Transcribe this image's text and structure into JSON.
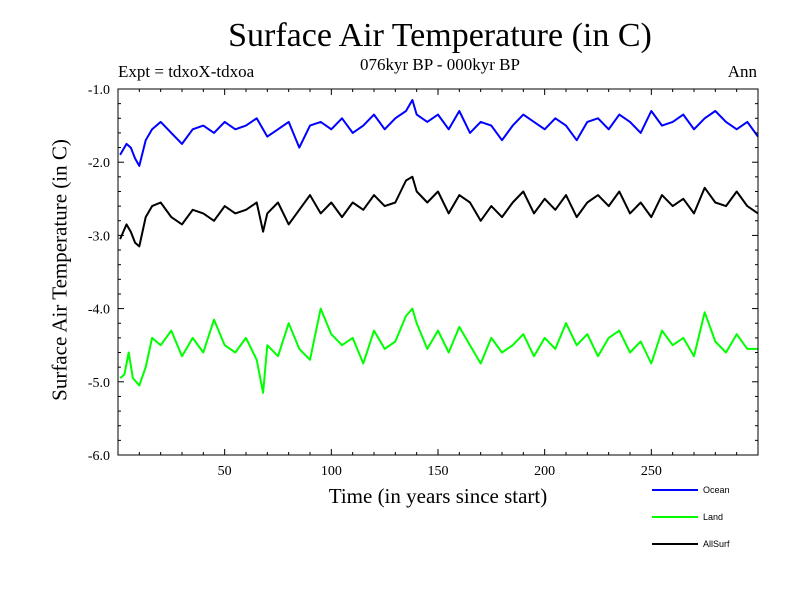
{
  "chart_data": {
    "type": "line",
    "title": "Surface Air Temperature (in C)",
    "subtitle": "076kyr BP - 000kyr BP",
    "expt_label": "Expt = tdxoX-tdxoa",
    "season_label": "Ann",
    "xlabel": "Time (in years since start)",
    "ylabel": "Surface Air Temperature (in C)",
    "xlim": [
      0,
      300
    ],
    "ylim": [
      -6.0,
      -1.0
    ],
    "x_ticks": [
      50,
      100,
      150,
      200,
      250
    ],
    "y_ticks": [
      -1.0,
      -2.0,
      -3.0,
      -4.0,
      -5.0,
      -6.0
    ],
    "grid": false,
    "legend_position": "bottom-right, below axes",
    "series": [
      {
        "name": "Ocean",
        "color": "#0000ff",
        "x": [
          1,
          4,
          6,
          8,
          10,
          13,
          16,
          20,
          25,
          30,
          35,
          40,
          45,
          50,
          55,
          60,
          65,
          70,
          75,
          80,
          85,
          90,
          95,
          100,
          105,
          110,
          115,
          120,
          125,
          130,
          135,
          138,
          140,
          145,
          150,
          155,
          160,
          165,
          170,
          175,
          180,
          185,
          190,
          195,
          200,
          205,
          210,
          215,
          220,
          225,
          230,
          235,
          240,
          245,
          250,
          255,
          260,
          265,
          270,
          275,
          280,
          285,
          290,
          295,
          300
        ],
        "values": [
          -1.9,
          -1.75,
          -1.8,
          -1.95,
          -2.05,
          -1.7,
          -1.55,
          -1.45,
          -1.6,
          -1.75,
          -1.55,
          -1.5,
          -1.6,
          -1.45,
          -1.55,
          -1.5,
          -1.4,
          -1.65,
          -1.55,
          -1.45,
          -1.8,
          -1.5,
          -1.45,
          -1.55,
          -1.4,
          -1.6,
          -1.5,
          -1.35,
          -1.55,
          -1.4,
          -1.3,
          -1.15,
          -1.35,
          -1.45,
          -1.35,
          -1.55,
          -1.3,
          -1.6,
          -1.45,
          -1.5,
          -1.7,
          -1.5,
          -1.35,
          -1.45,
          -1.55,
          -1.4,
          -1.5,
          -1.7,
          -1.45,
          -1.4,
          -1.55,
          -1.35,
          -1.45,
          -1.6,
          -1.3,
          -1.5,
          -1.45,
          -1.35,
          -1.55,
          -1.4,
          -1.3,
          -1.45,
          -1.55,
          -1.45,
          -1.65
        ]
      },
      {
        "name": "Land",
        "color": "#00ff00",
        "x": [
          1,
          3,
          5,
          7,
          10,
          13,
          16,
          20,
          25,
          30,
          35,
          40,
          45,
          50,
          55,
          60,
          65,
          68,
          70,
          75,
          80,
          85,
          90,
          95,
          100,
          105,
          110,
          115,
          120,
          125,
          130,
          135,
          138,
          140,
          145,
          150,
          155,
          160,
          165,
          170,
          175,
          180,
          185,
          190,
          195,
          200,
          205,
          210,
          215,
          220,
          225,
          230,
          235,
          240,
          245,
          250,
          255,
          260,
          265,
          270,
          275,
          280,
          285,
          290,
          295,
          300
        ],
        "values": [
          -4.95,
          -4.9,
          -4.6,
          -4.95,
          -5.05,
          -4.8,
          -4.4,
          -4.5,
          -4.3,
          -4.65,
          -4.4,
          -4.6,
          -4.15,
          -4.5,
          -4.6,
          -4.4,
          -4.7,
          -5.15,
          -4.5,
          -4.65,
          -4.2,
          -4.55,
          -4.7,
          -4.0,
          -4.35,
          -4.5,
          -4.4,
          -4.75,
          -4.3,
          -4.55,
          -4.45,
          -4.1,
          -4.0,
          -4.2,
          -4.55,
          -4.3,
          -4.6,
          -4.25,
          -4.5,
          -4.75,
          -4.4,
          -4.6,
          -4.5,
          -4.35,
          -4.65,
          -4.4,
          -4.55,
          -4.2,
          -4.5,
          -4.35,
          -4.65,
          -4.4,
          -4.3,
          -4.6,
          -4.45,
          -4.75,
          -4.3,
          -4.5,
          -4.4,
          -4.65,
          -4.05,
          -4.45,
          -4.6,
          -4.35,
          -4.55,
          -4.55
        ]
      },
      {
        "name": "AllSurf",
        "color": "#000000",
        "x": [
          1,
          4,
          6,
          8,
          10,
          13,
          16,
          20,
          25,
          30,
          35,
          40,
          45,
          50,
          55,
          60,
          65,
          68,
          70,
          75,
          80,
          85,
          90,
          95,
          100,
          105,
          110,
          115,
          120,
          125,
          130,
          135,
          138,
          140,
          145,
          150,
          155,
          160,
          165,
          170,
          175,
          180,
          185,
          190,
          195,
          200,
          205,
          210,
          215,
          220,
          225,
          230,
          235,
          240,
          245,
          250,
          255,
          260,
          265,
          270,
          275,
          280,
          285,
          290,
          295,
          300
        ],
        "values": [
          -3.05,
          -2.85,
          -2.95,
          -3.1,
          -3.15,
          -2.75,
          -2.6,
          -2.55,
          -2.75,
          -2.85,
          -2.65,
          -2.7,
          -2.8,
          -2.6,
          -2.7,
          -2.65,
          -2.55,
          -2.95,
          -2.7,
          -2.55,
          -2.85,
          -2.65,
          -2.45,
          -2.7,
          -2.55,
          -2.75,
          -2.55,
          -2.65,
          -2.45,
          -2.6,
          -2.55,
          -2.25,
          -2.2,
          -2.4,
          -2.55,
          -2.4,
          -2.7,
          -2.45,
          -2.55,
          -2.8,
          -2.6,
          -2.75,
          -2.55,
          -2.4,
          -2.7,
          -2.5,
          -2.65,
          -2.45,
          -2.75,
          -2.55,
          -2.45,
          -2.6,
          -2.4,
          -2.7,
          -2.55,
          -2.75,
          -2.45,
          -2.6,
          -2.5,
          -2.7,
          -2.35,
          -2.55,
          -2.6,
          -2.4,
          -2.6,
          -2.7
        ]
      }
    ]
  }
}
